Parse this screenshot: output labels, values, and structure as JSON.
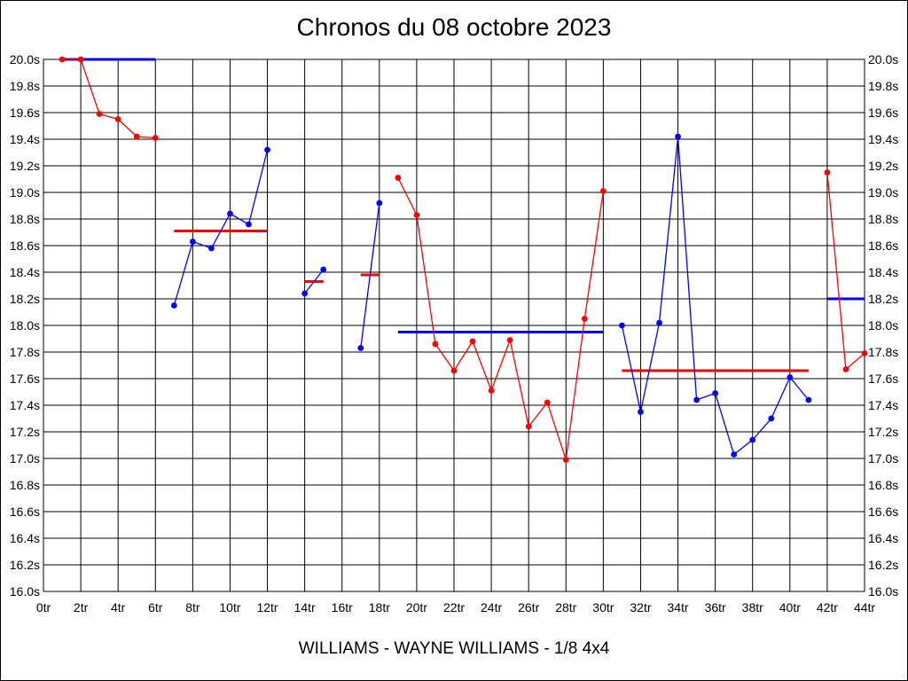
{
  "title": "Chronos du 08 octobre 2023",
  "footer": "WILLIAMS - WAYNE WILLIAMS - 1/8 4x4",
  "chart_data": {
    "type": "line",
    "title": "Chronos du 08 octobre 2023",
    "xlabel": "",
    "ylabel": "",
    "xlim": [
      0,
      44
    ],
    "ylim": [
      16.0,
      20.0
    ],
    "x_ticks": [
      "0tr",
      "2tr",
      "4tr",
      "6tr",
      "8tr",
      "10tr",
      "12tr",
      "14tr",
      "16tr",
      "18tr",
      "20tr",
      "22tr",
      "24tr",
      "26tr",
      "28tr",
      "30tr",
      "32tr",
      "34tr",
      "36tr",
      "38tr",
      "40tr",
      "42tr",
      "44tr"
    ],
    "y_ticks": [
      "16.0s",
      "16.2s",
      "16.4s",
      "16.6s",
      "16.8s",
      "17.0s",
      "17.2s",
      "17.4s",
      "17.6s",
      "17.8s",
      "18.0s",
      "18.2s",
      "18.4s",
      "18.6s",
      "18.8s",
      "19.0s",
      "19.2s",
      "19.4s",
      "19.6s",
      "19.8s",
      "20.0s"
    ],
    "y_axis_both_sides": true,
    "grid": true,
    "colors": {
      "red": "#ff0000",
      "blue": "#0000ff"
    },
    "series": [
      {
        "color": "#ff0000",
        "points": [
          [
            1,
            20.0
          ],
          [
            2,
            20.0
          ],
          [
            3,
            19.59
          ],
          [
            4,
            19.55
          ],
          [
            5,
            19.42
          ],
          [
            6,
            19.41
          ]
        ]
      },
      {
        "color": "#0000ff",
        "points": [
          [
            7,
            18.15
          ],
          [
            8,
            18.63
          ],
          [
            9,
            18.58
          ],
          [
            10,
            18.84
          ],
          [
            11,
            18.76
          ],
          [
            12,
            19.32
          ]
        ]
      },
      {
        "color": "#0000ff",
        "points": [
          [
            14,
            18.24
          ],
          [
            15,
            18.42
          ]
        ]
      },
      {
        "color": "#0000ff",
        "points": [
          [
            17,
            17.83
          ],
          [
            18,
            18.92
          ]
        ]
      },
      {
        "color": "#ff0000",
        "points": [
          [
            19,
            19.11
          ],
          [
            20,
            18.83
          ],
          [
            21,
            17.86
          ],
          [
            22,
            17.66
          ],
          [
            23,
            17.88
          ],
          [
            24,
            17.51
          ],
          [
            25,
            17.89
          ],
          [
            26,
            17.24
          ],
          [
            27,
            17.42
          ],
          [
            28,
            16.99
          ],
          [
            29,
            18.05
          ],
          [
            30,
            19.01
          ]
        ]
      },
      {
        "color": "#0000ff",
        "points": [
          [
            31,
            18.0
          ],
          [
            32,
            17.35
          ],
          [
            33,
            18.02
          ],
          [
            34,
            19.42
          ],
          [
            35,
            17.44
          ],
          [
            36,
            17.49
          ],
          [
            37,
            17.03
          ],
          [
            38,
            17.14
          ],
          [
            39,
            17.3
          ],
          [
            40,
            17.61
          ],
          [
            41,
            17.44
          ]
        ]
      },
      {
        "color": "#ff0000",
        "points": [
          [
            42,
            19.15
          ],
          [
            43,
            17.67
          ],
          [
            44,
            17.79
          ]
        ]
      }
    ],
    "averages": [
      {
        "color": "#0000ff",
        "from": 1,
        "to": 6,
        "value": 20.0
      },
      {
        "color": "#ff0000",
        "from": 7,
        "to": 12,
        "value": 18.71
      },
      {
        "color": "#ff0000",
        "from": 14,
        "to": 15,
        "value": 18.33
      },
      {
        "color": "#ff0000",
        "from": 17,
        "to": 18,
        "value": 18.38
      },
      {
        "color": "#0000ff",
        "from": 19,
        "to": 30,
        "value": 17.95
      },
      {
        "color": "#ff0000",
        "from": 31,
        "to": 41,
        "value": 17.66
      },
      {
        "color": "#0000ff",
        "from": 42,
        "to": 44,
        "value": 18.2
      }
    ]
  }
}
